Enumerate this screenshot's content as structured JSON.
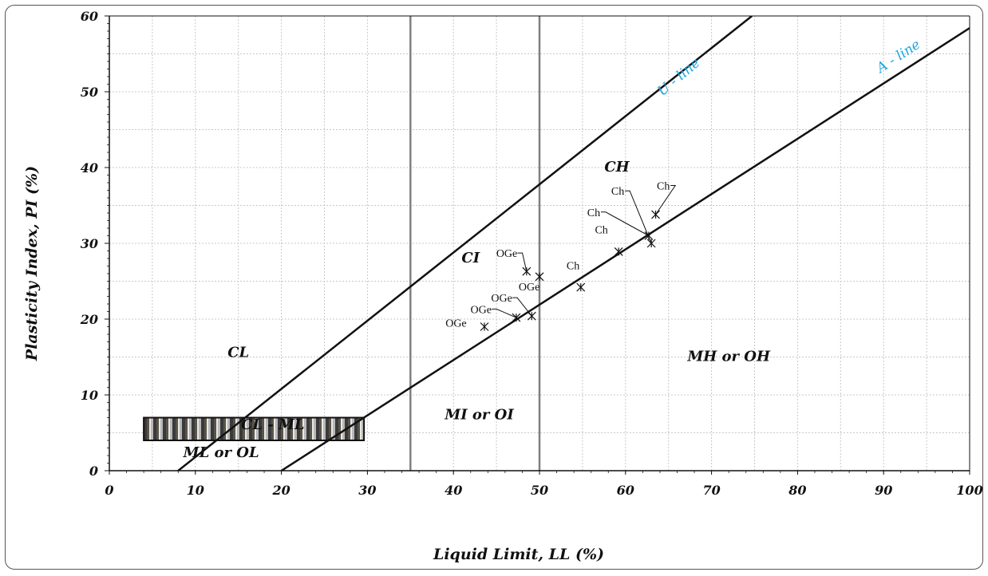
{
  "chart_data": {
    "type": "scatter",
    "title": "",
    "xlabel": "Liquid Limit, LL (%)",
    "ylabel": "Plasticity Index, PI (%)",
    "xlim": [
      0,
      100
    ],
    "ylim": [
      0,
      60
    ],
    "x_ticks": [
      "0",
      "10",
      "20",
      "30",
      "40",
      "50",
      "60",
      "70",
      "80",
      "90",
      "100"
    ],
    "y_ticks": [
      "0",
      "10",
      "20",
      "30",
      "40",
      "50",
      "60"
    ],
    "grid": true,
    "reference_lines": [
      {
        "name": "U - line",
        "equation": "PI = 0.9 (LL - 8)",
        "x": [
          5.0,
          74.7
        ],
        "y": [
          -2.7,
          60
        ]
      },
      {
        "name": "A - line",
        "equation": "PI = 0.73 (LL - 20)",
        "x": [
          20.0,
          100
        ],
        "y": [
          0,
          58.4
        ]
      }
    ],
    "boundaries_x": [
      35,
      50
    ],
    "hatched_band": {
      "x_range": [
        4,
        29.6
      ],
      "y_range": [
        4,
        7
      ]
    },
    "zones": [
      {
        "label": "CL",
        "x": 15,
        "y": 15
      },
      {
        "label": "CL - ML",
        "x": 19,
        "y": 5.5
      },
      {
        "label": "ML or OL",
        "x": 13,
        "y": 1.8
      },
      {
        "label": "MI or OI",
        "x": 43,
        "y": 6.8
      },
      {
        "label": "CI",
        "x": 42,
        "y": 27.5
      },
      {
        "label": "MH or OH",
        "x": 72,
        "y": 14.5
      },
      {
        "label": "CH",
        "x": 59,
        "y": 39.5
      }
    ],
    "series": [
      {
        "name": "OGe",
        "points": [
          [
            43.6,
            19.0
          ],
          [
            47.3,
            20.2
          ],
          [
            49.1,
            20.4
          ],
          [
            48.5,
            26.3
          ],
          [
            50.0,
            25.6
          ]
        ]
      },
      {
        "name": "Ch",
        "points": [
          [
            54.8,
            24.2
          ],
          [
            59.2,
            28.9
          ],
          [
            62.7,
            31.0
          ],
          [
            63.0,
            30.0
          ],
          [
            63.5,
            33.8
          ]
        ]
      }
    ],
    "point_labels": [
      {
        "text": "OGe",
        "x": 43.6,
        "y": 19.0,
        "label_x": 40.3,
        "label_y": 19.0,
        "leader": false
      },
      {
        "text": "OGe",
        "x": 47.3,
        "y": 20.2,
        "label_x": 43.2,
        "label_y": 20.8,
        "leader": true
      },
      {
        "text": "OGe",
        "x": 49.1,
        "y": 20.4,
        "label_x": 45.6,
        "label_y": 22.3,
        "leader": true
      },
      {
        "text": "OGe",
        "x": 48.5,
        "y": 26.3,
        "label_x": 46.2,
        "label_y": 28.2,
        "leader": true
      },
      {
        "text": "OGe",
        "x": 50.0,
        "y": 25.6,
        "label_x": 48.8,
        "label_y": 23.8,
        "leader": false
      },
      {
        "text": "Ch",
        "x": 54.8,
        "y": 24.2,
        "label_x": 53.9,
        "label_y": 26.6,
        "leader": false
      },
      {
        "text": "Ch",
        "x": 59.2,
        "y": 28.9,
        "label_x": 57.2,
        "label_y": 31.3,
        "leader": false
      },
      {
        "text": "Ch",
        "x": 62.7,
        "y": 31.0,
        "label_x": 56.3,
        "label_y": 33.6,
        "leader": true
      },
      {
        "text": "Ch",
        "x": 63.0,
        "y": 30.0,
        "label_x": 59.1,
        "label_y": 36.4,
        "leader": true
      },
      {
        "text": "Ch",
        "x": 63.5,
        "y": 33.8,
        "label_x": 64.4,
        "label_y": 37.1,
        "leader": true
      }
    ]
  }
}
